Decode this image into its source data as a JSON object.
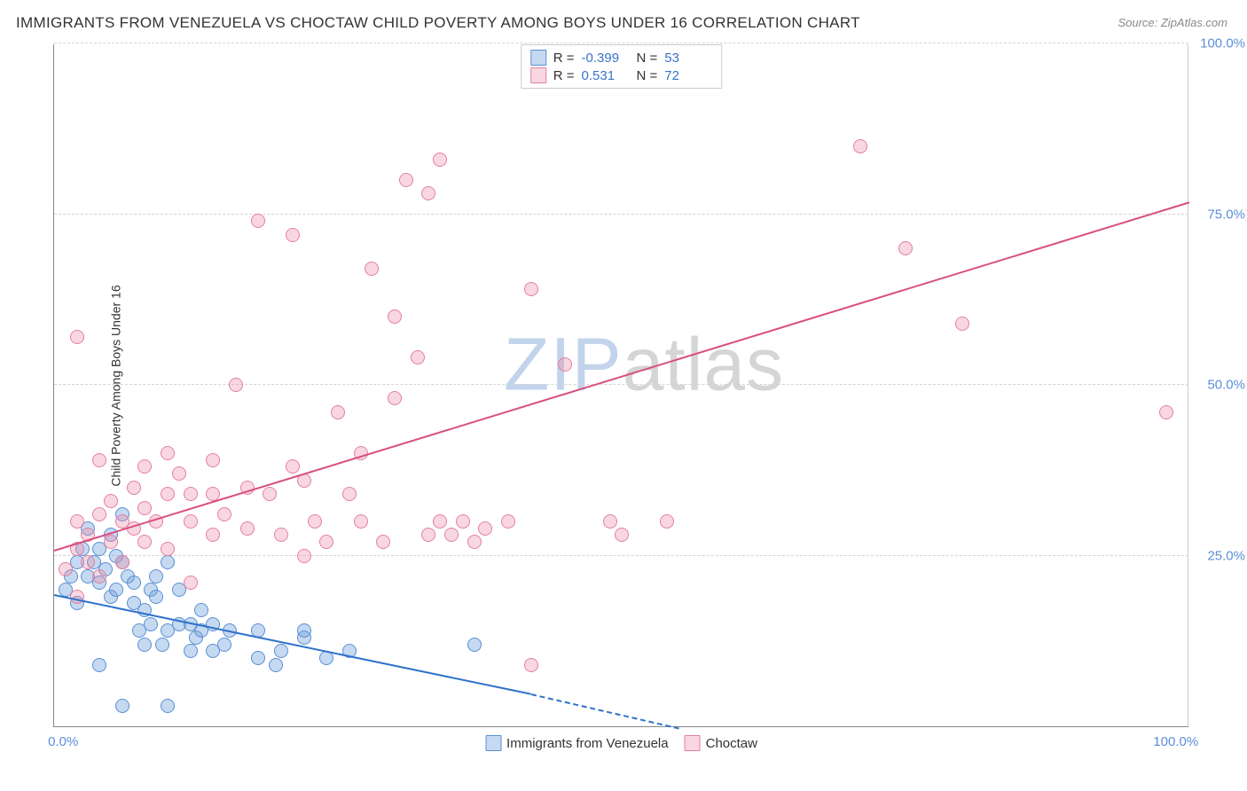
{
  "title": "IMMIGRANTS FROM VENEZUELA VS CHOCTAW CHILD POVERTY AMONG BOYS UNDER 16 CORRELATION CHART",
  "source_label": "Source: ",
  "source_value": "ZipAtlas.com",
  "y_axis_title": "Child Poverty Among Boys Under 16",
  "watermark": {
    "part1": "ZIP",
    "part2": "atlas"
  },
  "chart": {
    "type": "scatter",
    "xlim": [
      0,
      100
    ],
    "ylim": [
      0,
      100
    ],
    "x_ticks": [
      {
        "pos": 0,
        "label": "0.0%"
      },
      {
        "pos": 100,
        "label": "100.0%"
      }
    ],
    "y_ticks": [
      {
        "pos": 25,
        "label": "25.0%"
      },
      {
        "pos": 50,
        "label": "50.0%"
      },
      {
        "pos": 75,
        "label": "75.0%"
      },
      {
        "pos": 100,
        "label": "100.0%"
      }
    ],
    "grid_y": [
      25,
      50,
      75,
      100
    ],
    "background_color": "#ffffff",
    "grid_color": "#d4d4d4",
    "axis_color": "#888888",
    "marker_radius": 8,
    "series": [
      {
        "name": "Immigrants from Venezuela",
        "fill_color": "rgba(110,160,220,0.40)",
        "stroke_color": "#5a8fd4",
        "line_color": "#2e72c9",
        "line_width": 2,
        "trend": {
          "x1": 0,
          "y1": 19.5,
          "x2": 42,
          "y2": 5.0,
          "solid_until_x": 42,
          "dash_to_x": 55,
          "dash_to_y": 0
        },
        "points": [
          [
            1,
            20
          ],
          [
            1.5,
            22
          ],
          [
            2,
            18
          ],
          [
            2,
            24
          ],
          [
            2.5,
            26
          ],
          [
            3,
            22
          ],
          [
            3,
            29
          ],
          [
            3.5,
            24
          ],
          [
            4,
            21
          ],
          [
            4,
            26
          ],
          [
            4.5,
            23
          ],
          [
            5,
            19
          ],
          [
            5,
            28
          ],
          [
            5.5,
            20
          ],
          [
            5.5,
            25
          ],
          [
            6,
            24
          ],
          [
            6,
            31
          ],
          [
            6.5,
            22
          ],
          [
            7,
            18
          ],
          [
            7,
            21
          ],
          [
            7.5,
            14
          ],
          [
            8,
            12
          ],
          [
            8,
            17
          ],
          [
            8.5,
            15
          ],
          [
            8.5,
            20
          ],
          [
            9,
            19
          ],
          [
            9,
            22
          ],
          [
            9.5,
            12
          ],
          [
            10,
            14
          ],
          [
            10,
            24
          ],
          [
            11,
            15
          ],
          [
            11,
            20
          ],
          [
            12,
            11
          ],
          [
            12,
            15
          ],
          [
            12.5,
            13
          ],
          [
            13,
            14
          ],
          [
            13,
            17
          ],
          [
            14,
            11
          ],
          [
            14,
            15
          ],
          [
            15,
            12
          ],
          [
            15.5,
            14
          ],
          [
            18,
            10
          ],
          [
            18,
            14
          ],
          [
            19.5,
            9
          ],
          [
            20,
            11
          ],
          [
            22,
            13
          ],
          [
            22,
            14
          ],
          [
            24,
            10
          ],
          [
            26,
            11
          ],
          [
            37,
            12
          ],
          [
            6,
            3
          ],
          [
            10,
            3
          ],
          [
            4,
            9
          ]
        ]
      },
      {
        "name": "Choctaw",
        "fill_color": "rgba(238,140,170,0.35)",
        "stroke_color": "#e37fa0",
        "line_color": "#d94f7e",
        "line_width": 2,
        "trend": {
          "x1": 0,
          "y1": 26,
          "x2": 100,
          "y2": 77,
          "solid_until_x": 100
        },
        "points": [
          [
            1,
            23
          ],
          [
            2,
            19
          ],
          [
            2,
            26
          ],
          [
            2,
            30
          ],
          [
            3,
            24
          ],
          [
            3,
            28
          ],
          [
            4,
            22
          ],
          [
            4,
            31
          ],
          [
            4,
            39
          ],
          [
            5,
            27
          ],
          [
            5,
            33
          ],
          [
            6,
            24
          ],
          [
            6,
            30
          ],
          [
            7,
            29
          ],
          [
            7,
            35
          ],
          [
            8,
            27
          ],
          [
            8,
            32
          ],
          [
            8,
            38
          ],
          [
            9,
            30
          ],
          [
            10,
            26
          ],
          [
            10,
            34
          ],
          [
            11,
            37
          ],
          [
            12,
            30
          ],
          [
            12,
            34
          ],
          [
            12,
            21
          ],
          [
            14,
            28
          ],
          [
            14,
            34
          ],
          [
            15,
            31
          ],
          [
            16,
            50
          ],
          [
            17,
            29
          ],
          [
            17,
            35
          ],
          [
            18,
            74
          ],
          [
            19,
            34
          ],
          [
            20,
            28
          ],
          [
            21,
            38
          ],
          [
            21,
            72
          ],
          [
            22,
            25
          ],
          [
            22,
            36
          ],
          [
            23,
            30
          ],
          [
            24,
            27
          ],
          [
            25,
            46
          ],
          [
            26,
            34
          ],
          [
            27,
            30
          ],
          [
            27,
            40
          ],
          [
            28,
            67
          ],
          [
            29,
            27
          ],
          [
            30,
            48
          ],
          [
            30,
            60
          ],
          [
            31,
            80
          ],
          [
            32,
            54
          ],
          [
            33,
            28
          ],
          [
            33,
            78
          ],
          [
            34,
            30
          ],
          [
            34,
            83
          ],
          [
            35,
            28
          ],
          [
            36,
            30
          ],
          [
            37,
            27
          ],
          [
            38,
            29
          ],
          [
            40,
            30
          ],
          [
            42,
            64
          ],
          [
            42,
            9
          ],
          [
            45,
            53
          ],
          [
            49,
            30
          ],
          [
            50,
            28
          ],
          [
            54,
            30
          ],
          [
            71,
            85
          ],
          [
            75,
            70
          ],
          [
            80,
            59
          ],
          [
            98,
            46
          ],
          [
            2,
            57
          ],
          [
            10,
            40
          ],
          [
            14,
            39
          ]
        ]
      }
    ],
    "legend_top": {
      "rows": [
        {
          "swatch_fill": "rgba(110,160,220,0.40)",
          "swatch_stroke": "#5a8fd4",
          "r_label": "R =",
          "r_value": "-0.399",
          "n_label": "N =",
          "n_value": "53"
        },
        {
          "swatch_fill": "rgba(238,140,170,0.35)",
          "swatch_stroke": "#e37fa0",
          "r_label": "R =",
          "r_value": " 0.531",
          "n_label": "N =",
          "n_value": "72"
        }
      ]
    },
    "legend_bottom": [
      {
        "swatch_fill": "rgba(110,160,220,0.40)",
        "swatch_stroke": "#5a8fd4",
        "label": "Immigrants from Venezuela"
      },
      {
        "swatch_fill": "rgba(238,140,170,0.35)",
        "swatch_stroke": "#e37fa0",
        "label": "Choctaw"
      }
    ]
  }
}
